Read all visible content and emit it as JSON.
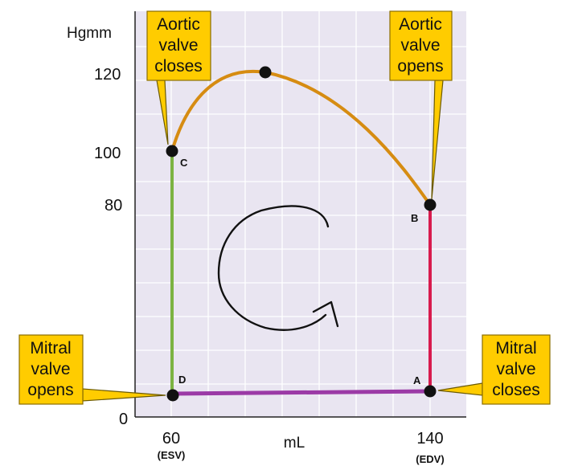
{
  "y_axis": {
    "unit": "Hgmm",
    "ticks": [
      "120",
      "100",
      "80",
      "0"
    ]
  },
  "x_axis": {
    "unit": "mL",
    "ticks": [
      {
        "value": "60",
        "sub": "(ESV)"
      },
      {
        "value": "140",
        "sub": "(EDV)"
      }
    ]
  },
  "points": {
    "a": "A",
    "b": "B",
    "c": "C",
    "d": "D"
  },
  "callouts": {
    "aortic_closes": [
      "Aortic",
      "valve",
      "closes"
    ],
    "aortic_opens": [
      "Aortic",
      "valve",
      "opens"
    ],
    "mitral_opens": [
      "Mitral",
      "valve",
      "opens"
    ],
    "mitral_closes": [
      "Mitral",
      "valve",
      "closes"
    ]
  },
  "colors": {
    "plot_bg": "#e9e5f1",
    "grid": "#ffffff",
    "filling": "#9b3aa6",
    "isovol_contraction": "#d81b4e",
    "ejection": "#d68c12",
    "isovol_relaxation": "#7cb342",
    "callout_fill": "#ffcc00",
    "callout_border": "#8a6d00"
  }
}
